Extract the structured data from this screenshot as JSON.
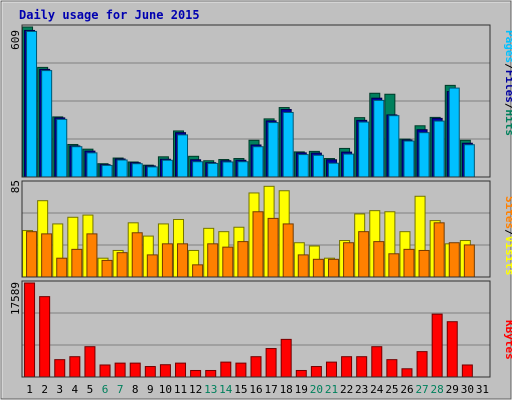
{
  "chart_data": [
    {
      "type": "bar",
      "title": "Daily usage for June 2015",
      "ylabel_max": "609",
      "ylim": [
        0,
        609
      ],
      "legend_labels": [
        "Pages",
        "/",
        "Files",
        "/",
        "Hits"
      ],
      "categories": [
        "1",
        "2",
        "3",
        "4",
        "5",
        "6",
        "7",
        "8",
        "9",
        "10",
        "11",
        "12",
        "13",
        "14",
        "15",
        "16",
        "17",
        "18",
        "19",
        "20",
        "21",
        "22",
        "23",
        "24",
        "25",
        "26",
        "27",
        "28",
        "29",
        "30",
        "31"
      ],
      "series": [
        {
          "name": "Hits",
          "color": "#00805c",
          "values": [
            609,
            445,
            244,
            132,
            113,
            54,
            77,
            61,
            48,
            82,
            187,
            84,
            66,
            71,
            75,
            149,
            236,
            282,
            102,
            104,
            75,
            116,
            241,
            340,
            336,
            154,
            208,
            242,
            372,
            149,
            0
          ]
        },
        {
          "name": "Files",
          "color": "#0000a0",
          "values": [
            595,
            437,
            240,
            126,
            105,
            50,
            73,
            58,
            45,
            72,
            180,
            70,
            58,
            66,
            68,
            130,
            228,
            274,
            98,
            97,
            70,
            101,
            230,
            320,
            252,
            150,
            192,
            238,
            347,
            137,
            0
          ]
        },
        {
          "name": "Pages",
          "color": "#00c0ff",
          "values": [
            591,
            432,
            234,
            123,
            98,
            47,
            69,
            54,
            41,
            68,
            171,
            62,
            55,
            61,
            62,
            123,
            221,
            262,
            91,
            88,
            56,
            93,
            223,
            311,
            249,
            146,
            180,
            227,
            361,
            131,
            0
          ]
        }
      ]
    },
    {
      "type": "bar",
      "ylabel_max": "85",
      "ylim": [
        0,
        85
      ],
      "legend_labels": [
        "Sites",
        "/",
        "Visits"
      ],
      "categories": [
        "1",
        "2",
        "3",
        "4",
        "5",
        "6",
        "7",
        "8",
        "9",
        "10",
        "11",
        "12",
        "13",
        "14",
        "15",
        "16",
        "17",
        "18",
        "19",
        "20",
        "21",
        "22",
        "23",
        "24",
        "25",
        "26",
        "27",
        "28",
        "29",
        "30",
        "31"
      ],
      "series": [
        {
          "name": "Visits",
          "color": "#ffff00",
          "values": [
            42,
            69,
            48,
            54,
            56,
            17,
            24,
            49,
            37,
            48,
            52,
            24,
            44,
            41,
            45,
            76,
            82,
            78,
            31,
            28,
            17,
            33,
            57,
            60,
            59,
            41,
            73,
            51,
            30,
            33,
            0
          ]
        },
        {
          "name": "Sites",
          "color": "#ff8000",
          "values": [
            41,
            39,
            17,
            25,
            39,
            15,
            22,
            40,
            20,
            30,
            30,
            11,
            30,
            27,
            32,
            59,
            53,
            48,
            20,
            16,
            16,
            31,
            41,
            32,
            21,
            25,
            24,
            49,
            31,
            29,
            0
          ]
        }
      ]
    },
    {
      "type": "bar",
      "ylabel_max": "17589",
      "ylim": [
        0,
        17589
      ],
      "legend_labels": [
        "KBytes"
      ],
      "categories": [
        "1",
        "2",
        "3",
        "4",
        "5",
        "6",
        "7",
        "8",
        "9",
        "10",
        "11",
        "12",
        "13",
        "14",
        "15",
        "16",
        "17",
        "18",
        "19",
        "20",
        "21",
        "22",
        "23",
        "24",
        "25",
        "26",
        "27",
        "28",
        "29",
        "30",
        "31"
      ],
      "series": [
        {
          "name": "KBytes",
          "color": "#ff0000",
          "values": [
            17589,
            15040,
            3248,
            3802,
            5674,
            2250,
            2598,
            2598,
            1958,
            2302,
            2598,
            1219,
            1219,
            2786,
            2598,
            3802,
            5326,
            7040,
            1219,
            1958,
            2786,
            3802,
            3802,
            5674,
            3247,
            1541,
            4750,
            11760,
            10350,
            2250,
            0
          ]
        }
      ]
    }
  ],
  "weekend_days": [
    6,
    7,
    13,
    14,
    20,
    21,
    27,
    28
  ]
}
